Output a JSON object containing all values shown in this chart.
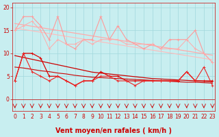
{
  "title": "Vent moyen/en rafales ( km/h )",
  "bg_color": "#c8eef0",
  "grid_color": "#a0d8dc",
  "x_values": [
    0,
    1,
    2,
    3,
    4,
    5,
    6,
    7,
    8,
    9,
    10,
    11,
    12,
    13,
    14,
    15,
    16,
    17,
    18,
    19,
    20,
    21,
    22,
    23
  ],
  "series": [
    {
      "color": "#ff9999",
      "linewidth": 0.8,
      "marker": "+",
      "markersize": 3,
      "zorder": 3,
      "data": [
        15,
        18,
        18,
        16,
        13,
        18,
        12,
        11,
        13,
        13,
        18,
        13,
        16,
        13,
        12,
        11,
        12,
        11,
        13,
        13,
        13,
        15,
        10,
        8
      ]
    },
    {
      "color": "#ffaaaa",
      "linewidth": 0.9,
      "marker": null,
      "markersize": 0,
      "zorder": 2,
      "data": [
        16.5,
        16.2,
        15.9,
        15.6,
        15.3,
        15.0,
        14.7,
        14.4,
        14.1,
        13.8,
        13.5,
        13.2,
        12.9,
        12.6,
        12.3,
        12.0,
        11.7,
        11.4,
        11.1,
        10.8,
        10.5,
        10.2,
        9.9,
        9.6
      ]
    },
    {
      "color": "#ffbbbb",
      "linewidth": 0.8,
      "marker": null,
      "markersize": 0,
      "zorder": 2,
      "data": [
        15.5,
        15.2,
        14.9,
        14.6,
        14.3,
        14.0,
        13.7,
        13.4,
        13.1,
        12.8,
        12.5,
        12.2,
        11.9,
        11.6,
        11.3,
        11.0,
        10.7,
        10.4,
        10.1,
        9.8,
        9.5,
        9.2,
        8.9,
        8.6
      ]
    },
    {
      "color": "#ffaaaa",
      "linewidth": 0.7,
      "marker": "+",
      "markersize": 2.5,
      "zorder": 3,
      "data": [
        15,
        16,
        17,
        15,
        11,
        13,
        12,
        12,
        13,
        12,
        13,
        13,
        13,
        12,
        12,
        12,
        12,
        11,
        11,
        11,
        13,
        11,
        10,
        8
      ]
    },
    {
      "color": "#dd0000",
      "linewidth": 0.9,
      "marker": "+",
      "markersize": 3,
      "zorder": 4,
      "data": [
        4,
        10,
        10,
        9,
        5,
        5,
        4,
        3,
        4,
        4,
        6,
        5,
        5,
        4,
        4,
        4,
        4,
        4,
        4,
        4,
        6,
        4,
        4,
        4
      ]
    },
    {
      "color": "#cc0000",
      "linewidth": 0.9,
      "marker": null,
      "markersize": 0,
      "zorder": 3,
      "data": [
        9.5,
        9.1,
        8.7,
        8.3,
        7.9,
        7.5,
        7.1,
        6.7,
        6.3,
        5.9,
        5.7,
        5.5,
        5.3,
        5.1,
        4.9,
        4.7,
        4.5,
        4.4,
        4.3,
        4.2,
        4.1,
        4.0,
        3.9,
        3.8
      ]
    },
    {
      "color": "#cc0000",
      "linewidth": 0.8,
      "marker": null,
      "markersize": 0,
      "zorder": 3,
      "data": [
        7.0,
        6.8,
        6.5,
        6.2,
        6.0,
        5.7,
        5.5,
        5.2,
        5.0,
        4.8,
        4.7,
        4.6,
        4.5,
        4.4,
        4.3,
        4.2,
        4.1,
        4.0,
        3.9,
        3.8,
        3.7,
        3.7,
        3.6,
        3.5
      ]
    },
    {
      "color": "#ee2222",
      "linewidth": 0.8,
      "marker": "+",
      "markersize": 2.5,
      "zorder": 4,
      "data": [
        4,
        10,
        6,
        5,
        4,
        5,
        4,
        3,
        4,
        4,
        5,
        5,
        4,
        4,
        3,
        4,
        4,
        4,
        4,
        4,
        6,
        4,
        7,
        3
      ]
    }
  ],
  "ylim": [
    -2.5,
    21
  ],
  "xlim": [
    -0.3,
    23.3
  ],
  "yticks": [
    0,
    5,
    10,
    15,
    20
  ],
  "xticks": [
    0,
    1,
    2,
    3,
    4,
    5,
    6,
    7,
    8,
    9,
    10,
    11,
    12,
    13,
    14,
    15,
    16,
    17,
    18,
    19,
    20,
    21,
    22,
    23
  ],
  "tick_color": "#cc0000",
  "axis_label_color": "#cc0000",
  "tick_fontsize": 5.5,
  "label_fontsize": 7
}
